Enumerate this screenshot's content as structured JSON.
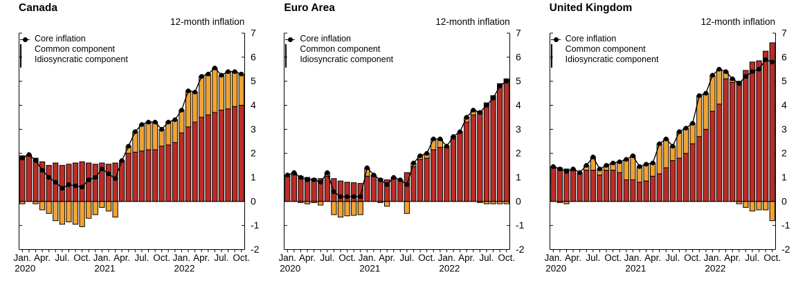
{
  "subtitle": "12-month inflation",
  "legend": {
    "core": "Core inflation",
    "common": "Common component",
    "idiosyncratic": "Idiosyncratic component"
  },
  "colors": {
    "common": "#BD2C26",
    "idiosyncratic": "#F0A432",
    "core": "#000000",
    "bar_outline": "#000000",
    "axis": "#000000"
  },
  "axis": {
    "ylim": [
      -2,
      7
    ],
    "y_ticks": [
      7,
      6,
      5,
      4,
      3,
      2,
      1,
      0,
      -1,
      -2
    ],
    "month_tick_labels": [
      "Jan.",
      "Apr.",
      "Jul.",
      "Oct.",
      "Jan.",
      "Apr.",
      "Jul.",
      "Oct.",
      "Jan.",
      "Apr.",
      "Jul.",
      "Oct."
    ],
    "month_tick_indices": [
      0,
      3,
      6,
      9,
      12,
      15,
      18,
      21,
      24,
      27,
      30,
      33
    ],
    "year_labels": [
      "2020",
      "2021",
      "2022"
    ],
    "year_indices": [
      0,
      12,
      24
    ],
    "grid": false
  },
  "chart_data": [
    {
      "type": "bar",
      "title": "Canada",
      "stacked": true,
      "categories": [
        "2020-01",
        "2020-02",
        "2020-03",
        "2020-04",
        "2020-05",
        "2020-06",
        "2020-07",
        "2020-08",
        "2020-09",
        "2020-10",
        "2020-11",
        "2020-12",
        "2021-01",
        "2021-02",
        "2021-03",
        "2021-04",
        "2021-05",
        "2021-06",
        "2021-07",
        "2021-08",
        "2021-09",
        "2021-10",
        "2021-11",
        "2021-12",
        "2022-01",
        "2022-02",
        "2022-03",
        "2022-04",
        "2022-05",
        "2022-06",
        "2022-07",
        "2022-08",
        "2022-09",
        "2022-10"
      ],
      "series": [
        {
          "name": "Common component",
          "type": "bar",
          "values": [
            1.9,
            1.95,
            1.8,
            1.65,
            1.5,
            1.6,
            1.5,
            1.55,
            1.6,
            1.65,
            1.6,
            1.55,
            1.6,
            1.55,
            1.6,
            1.65,
            2.0,
            2.05,
            2.1,
            2.15,
            2.15,
            2.3,
            2.35,
            2.45,
            2.85,
            3.1,
            3.3,
            3.5,
            3.6,
            3.7,
            3.8,
            3.85,
            3.95,
            4.0
          ]
        },
        {
          "name": "Idiosyncratic component",
          "type": "bar",
          "values": [
            -0.1,
            0.0,
            -0.1,
            -0.35,
            -0.5,
            -0.8,
            -0.95,
            -0.85,
            -0.95,
            -1.05,
            -0.7,
            -0.55,
            -0.25,
            -0.4,
            -0.65,
            0.05,
            0.3,
            0.85,
            1.1,
            1.15,
            1.15,
            0.7,
            0.95,
            0.95,
            0.95,
            1.5,
            1.25,
            1.7,
            1.7,
            1.85,
            1.45,
            1.55,
            1.45,
            1.3
          ]
        },
        {
          "name": "Core inflation",
          "type": "line",
          "values": [
            1.8,
            1.95,
            1.7,
            1.3,
            1.0,
            0.8,
            0.55,
            0.7,
            0.65,
            0.6,
            0.9,
            1.0,
            1.35,
            1.15,
            0.95,
            1.7,
            2.3,
            2.9,
            3.2,
            3.3,
            3.3,
            3.0,
            3.3,
            3.4,
            3.8,
            4.6,
            4.55,
            5.2,
            5.3,
            5.55,
            5.25,
            5.4,
            5.4,
            5.3
          ]
        }
      ],
      "ylabel": "12-month inflation",
      "ylim": [
        -2,
        7
      ]
    },
    {
      "type": "bar",
      "title": "Euro Area",
      "stacked": true,
      "categories": [
        "2020-01",
        "2020-02",
        "2020-03",
        "2020-04",
        "2020-05",
        "2020-06",
        "2020-07",
        "2020-08",
        "2020-09",
        "2020-10",
        "2020-11",
        "2020-12",
        "2021-01",
        "2021-02",
        "2021-03",
        "2021-04",
        "2021-05",
        "2021-06",
        "2021-07",
        "2021-08",
        "2021-09",
        "2021-10",
        "2021-11",
        "2021-12",
        "2022-01",
        "2022-02",
        "2022-03",
        "2022-04",
        "2022-05",
        "2022-06",
        "2022-07",
        "2022-08",
        "2022-09",
        "2022-10"
      ],
      "series": [
        {
          "name": "Common component",
          "type": "bar",
          "values": [
            1.05,
            1.1,
            1.05,
            1.0,
            0.95,
            0.95,
            1.05,
            0.95,
            0.85,
            0.8,
            0.78,
            0.75,
            1.05,
            1.05,
            0.95,
            0.9,
            0.95,
            0.9,
            1.2,
            1.45,
            1.75,
            1.8,
            2.15,
            2.25,
            2.25,
            2.6,
            2.85,
            3.3,
            3.6,
            3.75,
            4.1,
            4.4,
            4.9,
            5.1
          ]
        },
        {
          "name": "Idiosyncratic component",
          "type": "bar",
          "values": [
            0.05,
            0.1,
            -0.05,
            -0.1,
            -0.05,
            -0.15,
            0.15,
            -0.55,
            -0.65,
            -0.6,
            -0.58,
            -0.55,
            0.35,
            0.05,
            -0.05,
            -0.2,
            0.05,
            0.0,
            -0.5,
            0.15,
            0.15,
            0.2,
            0.45,
            0.35,
            0.05,
            0.1,
            0.05,
            0.2,
            0.2,
            -0.05,
            -0.1,
            -0.1,
            -0.1,
            -0.1
          ]
        },
        {
          "name": "Core inflation",
          "type": "line",
          "values": [
            1.1,
            1.2,
            1.0,
            0.9,
            0.9,
            0.8,
            1.2,
            0.4,
            0.2,
            0.2,
            0.2,
            0.2,
            1.4,
            1.1,
            0.9,
            0.7,
            1.0,
            0.9,
            0.7,
            1.6,
            1.9,
            2.0,
            2.6,
            2.6,
            2.3,
            2.7,
            2.9,
            3.5,
            3.8,
            3.7,
            4.0,
            4.3,
            4.8,
            5.0
          ]
        }
      ],
      "ylabel": "12-month inflation",
      "ylim": [
        -2,
        7
      ]
    },
    {
      "type": "bar",
      "title": "United Kingdom",
      "stacked": true,
      "categories": [
        "2020-01",
        "2020-02",
        "2020-03",
        "2020-04",
        "2020-05",
        "2020-06",
        "2020-07",
        "2020-08",
        "2020-09",
        "2020-10",
        "2020-11",
        "2020-12",
        "2021-01",
        "2021-02",
        "2021-03",
        "2021-04",
        "2021-05",
        "2021-06",
        "2021-07",
        "2021-08",
        "2021-09",
        "2021-10",
        "2021-11",
        "2021-12",
        "2022-01",
        "2022-02",
        "2022-03",
        "2022-04",
        "2022-05",
        "2022-06",
        "2022-07",
        "2022-08",
        "2022-09",
        "2022-10"
      ],
      "series": [
        {
          "name": "Common component",
          "type": "bar",
          "values": [
            1.4,
            1.4,
            1.35,
            1.3,
            1.15,
            1.3,
            1.3,
            1.1,
            1.3,
            1.3,
            1.2,
            0.9,
            0.9,
            0.8,
            0.85,
            1.05,
            1.15,
            1.4,
            1.7,
            1.8,
            2.0,
            2.4,
            2.7,
            3.0,
            3.75,
            4.05,
            5.1,
            4.95,
            5.0,
            5.45,
            5.8,
            5.85,
            6.25,
            6.6
          ]
        },
        {
          "name": "Idiosyncratic component",
          "type": "bar",
          "values": [
            0.05,
            -0.05,
            -0.1,
            0.05,
            0.05,
            0.2,
            0.55,
            0.25,
            0.2,
            0.3,
            0.45,
            0.85,
            1.0,
            0.65,
            0.7,
            0.55,
            1.25,
            1.2,
            0.6,
            1.1,
            1.05,
            0.85,
            1.7,
            1.5,
            1.5,
            1.45,
            0.3,
            0.15,
            -0.1,
            -0.25,
            -0.4,
            -0.35,
            -0.35,
            -0.8
          ]
        },
        {
          "name": "Core inflation",
          "type": "line",
          "values": [
            1.45,
            1.35,
            1.25,
            1.35,
            1.2,
            1.5,
            1.85,
            1.35,
            1.5,
            1.6,
            1.65,
            1.75,
            1.9,
            1.45,
            1.55,
            1.6,
            2.4,
            2.6,
            2.3,
            2.9,
            3.05,
            3.25,
            4.4,
            4.5,
            5.25,
            5.5,
            5.4,
            5.1,
            4.9,
            5.2,
            5.4,
            5.5,
            5.9,
            5.8
          ]
        }
      ],
      "ylabel": "12-month inflation",
      "ylim": [
        -2,
        7
      ]
    }
  ]
}
